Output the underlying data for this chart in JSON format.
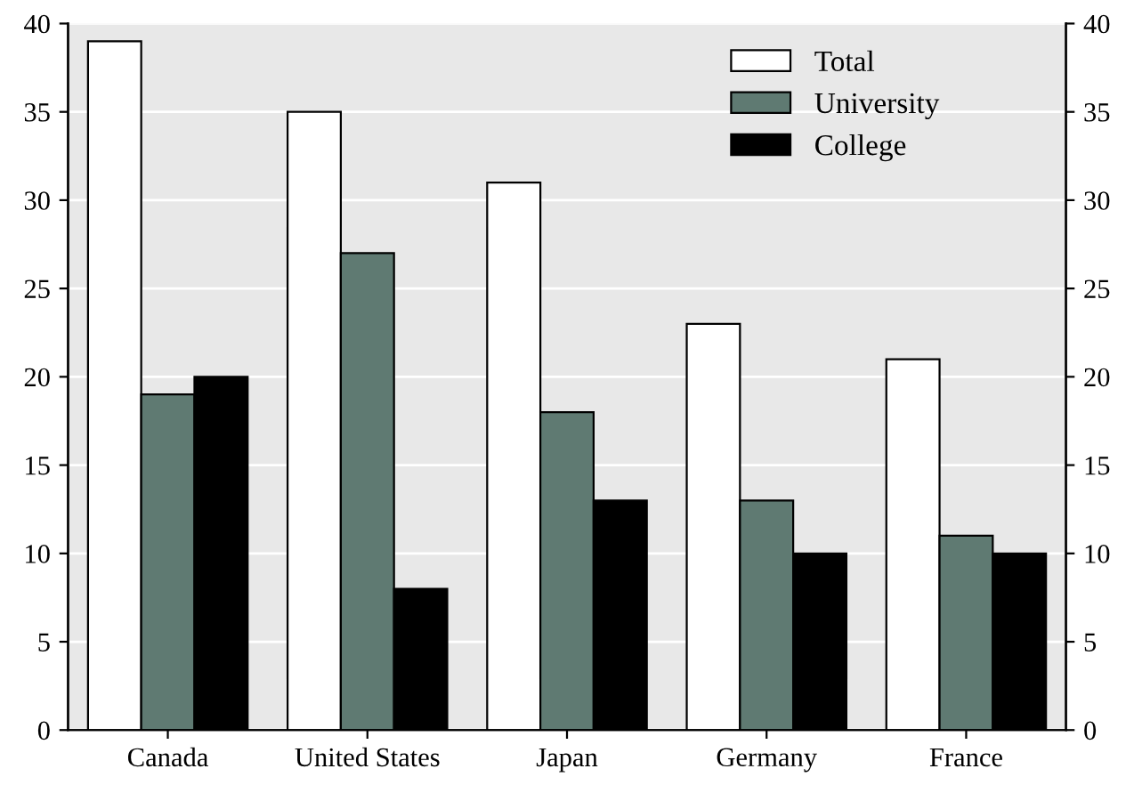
{
  "chart_data": {
    "type": "bar",
    "categories": [
      "Canada",
      "United States",
      "Japan",
      "Germany",
      "France"
    ],
    "series": [
      {
        "name": "Total",
        "color": "#ffffff",
        "values": [
          39,
          35,
          31,
          23,
          21
        ]
      },
      {
        "name": "University",
        "color": "#5f7a72",
        "values": [
          19,
          27,
          18,
          13,
          11
        ]
      },
      {
        "name": "College",
        "color": "#000000",
        "values": [
          20,
          8,
          13,
          10,
          10
        ]
      }
    ],
    "ylim": [
      0,
      40
    ],
    "yticks": [
      0,
      5,
      10,
      15,
      20,
      25,
      30,
      35,
      40
    ],
    "y2lim": [
      0,
      40
    ],
    "y2ticks": [
      0,
      5,
      10,
      15,
      20,
      25,
      30,
      35,
      40
    ],
    "grid": "y",
    "legend": "top right"
  }
}
